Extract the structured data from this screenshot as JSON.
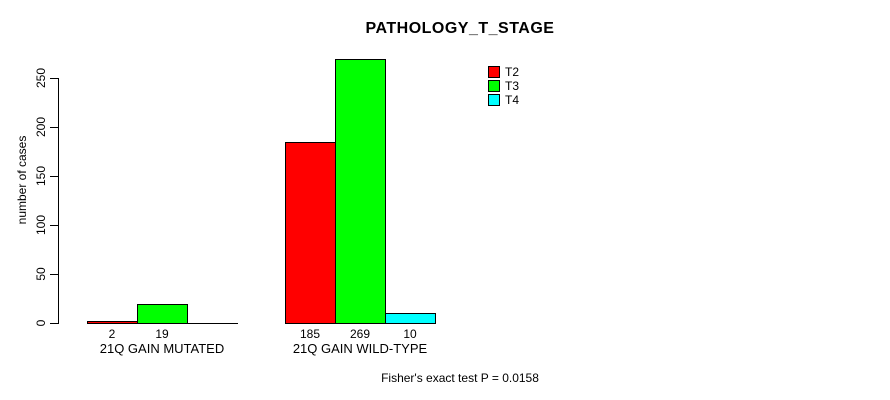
{
  "figure": {
    "background": "#FFFFFF",
    "text_color": "#000000"
  },
  "chart_data": {
    "type": "bar",
    "title": "PATHOLOGY_T_STAGE",
    "xlabel": "",
    "ylabel": "number of cases",
    "ylim": [
      0,
      270
    ],
    "yticks": [
      0,
      50,
      100,
      150,
      200,
      250
    ],
    "ytick_labels": [
      "0",
      "50",
      "100",
      "150",
      "200",
      "250"
    ],
    "grid": false,
    "legend_position": "top-right-inside",
    "categories": [
      "21Q GAIN MUTATED",
      "21Q GAIN WILD-TYPE"
    ],
    "series": [
      {
        "name": "T2",
        "color": "#FF0000",
        "values": [
          2,
          185
        ]
      },
      {
        "name": "T3",
        "color": "#00FF00",
        "values": [
          19,
          269
        ]
      },
      {
        "name": "T4",
        "color": "#00FFFF",
        "values": [
          0,
          10
        ]
      }
    ],
    "bar_value_labels": [
      [
        "2",
        "19",
        ""
      ],
      [
        "185",
        "269",
        "10"
      ]
    ],
    "annotation": "Fisher's exact test P = 0.0158"
  }
}
